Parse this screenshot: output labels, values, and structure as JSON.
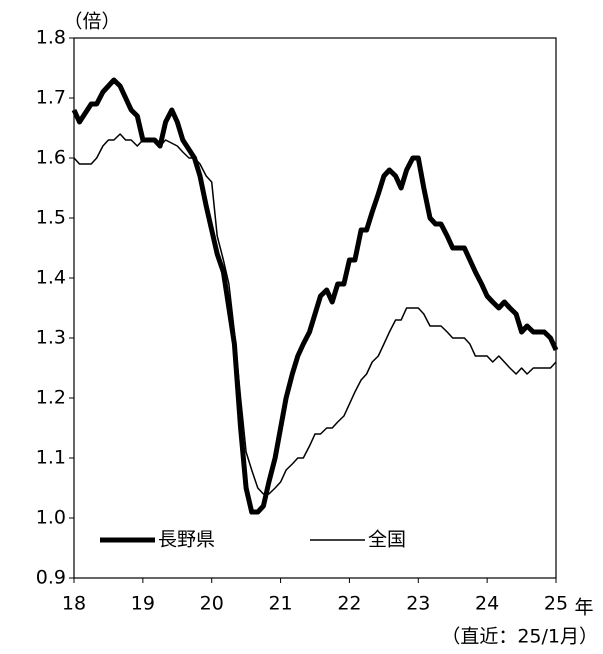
{
  "chart_data": {
    "type": "line",
    "y_unit": "（倍）",
    "x_unit": "年",
    "note": "（直近：25/1月）",
    "xlim": [
      18,
      25
    ],
    "xticks": [
      18,
      19,
      20,
      21,
      22,
      23,
      24,
      25
    ],
    "ylim": [
      0.9,
      1.8
    ],
    "yticks": [
      0.9,
      {
        "value": 1,
        "label": "1.0"
      },
      1.1,
      1.2,
      1.3,
      1.4,
      1.5,
      1.6,
      1.7,
      1.8
    ],
    "grid": false,
    "legend": "lower left",
    "series": [
      {
        "name": "長野県",
        "color": "#000000",
        "width": 5,
        "x": [
          18.0,
          18.08,
          18.25,
          18.33,
          18.42,
          18.58,
          18.67,
          18.83,
          18.92,
          19.0,
          19.17,
          19.25,
          19.33,
          19.42,
          19.5,
          19.58,
          19.75,
          19.83,
          19.92,
          20.0,
          20.08,
          20.17,
          20.25,
          20.33,
          20.42,
          20.5,
          20.58,
          20.67,
          20.75,
          20.83,
          20.92,
          21.0,
          21.08,
          21.17,
          21.25,
          21.33,
          21.42,
          21.5,
          21.58,
          21.67,
          21.75,
          21.83,
          21.92,
          22.0,
          22.08,
          22.17,
          22.25,
          22.33,
          22.42,
          22.5,
          22.58,
          22.67,
          22.75,
          22.83,
          22.92,
          23.0,
          23.08,
          23.17,
          23.25,
          23.33,
          23.42,
          23.5,
          23.58,
          23.67,
          23.75,
          23.83,
          23.92,
          24.0,
          24.08,
          24.17,
          24.25,
          24.33,
          24.42,
          24.5,
          24.58,
          24.67,
          24.83,
          24.92,
          25.0
        ],
        "values": [
          1.68,
          1.66,
          1.69,
          1.69,
          1.71,
          1.73,
          1.72,
          1.68,
          1.67,
          1.63,
          1.63,
          1.62,
          1.66,
          1.68,
          1.66,
          1.63,
          1.6,
          1.57,
          1.52,
          1.48,
          1.44,
          1.41,
          1.35,
          1.29,
          1.15,
          1.05,
          1.01,
          1.01,
          1.02,
          1.06,
          1.1,
          1.15,
          1.2,
          1.24,
          1.27,
          1.29,
          1.31,
          1.34,
          1.37,
          1.38,
          1.36,
          1.39,
          1.39,
          1.43,
          1.43,
          1.48,
          1.48,
          1.51,
          1.54,
          1.57,
          1.58,
          1.57,
          1.55,
          1.58,
          1.6,
          1.6,
          1.55,
          1.5,
          1.49,
          1.49,
          1.47,
          1.45,
          1.45,
          1.45,
          1.43,
          1.41,
          1.39,
          1.37,
          1.36,
          1.35,
          1.36,
          1.35,
          1.34,
          1.31,
          1.32,
          1.31,
          1.31,
          1.3,
          1.28
        ]
      },
      {
        "name": "全国",
        "color": "#000000",
        "width": 1.5,
        "x": [
          18.0,
          18.08,
          18.25,
          18.33,
          18.42,
          18.5,
          18.58,
          18.67,
          18.75,
          18.83,
          18.92,
          19.0,
          19.17,
          19.25,
          19.33,
          19.5,
          19.58,
          19.67,
          19.75,
          19.83,
          19.92,
          20.0,
          20.08,
          20.17,
          20.25,
          20.33,
          20.42,
          20.5,
          20.58,
          20.67,
          20.75,
          20.83,
          20.92,
          21.0,
          21.08,
          21.17,
          21.25,
          21.33,
          21.42,
          21.5,
          21.58,
          21.67,
          21.75,
          21.83,
          21.92,
          22.0,
          22.08,
          22.17,
          22.25,
          22.33,
          22.42,
          22.5,
          22.58,
          22.67,
          22.75,
          22.83,
          23.0,
          23.08,
          23.17,
          23.33,
          23.42,
          23.5,
          23.67,
          23.75,
          23.83,
          24.0,
          24.08,
          24.17,
          24.25,
          24.33,
          24.42,
          24.5,
          24.58,
          24.67,
          24.83,
          24.92,
          25.0
        ],
        "values": [
          1.6,
          1.59,
          1.59,
          1.6,
          1.62,
          1.63,
          1.63,
          1.64,
          1.63,
          1.63,
          1.62,
          1.63,
          1.63,
          1.62,
          1.63,
          1.62,
          1.61,
          1.6,
          1.6,
          1.59,
          1.57,
          1.56,
          1.47,
          1.43,
          1.39,
          1.31,
          1.2,
          1.11,
          1.08,
          1.05,
          1.04,
          1.04,
          1.05,
          1.06,
          1.08,
          1.09,
          1.1,
          1.1,
          1.12,
          1.14,
          1.14,
          1.15,
          1.15,
          1.16,
          1.17,
          1.19,
          1.21,
          1.23,
          1.24,
          1.26,
          1.27,
          1.29,
          1.31,
          1.33,
          1.33,
          1.35,
          1.35,
          1.34,
          1.32,
          1.32,
          1.31,
          1.3,
          1.3,
          1.29,
          1.27,
          1.27,
          1.26,
          1.27,
          1.26,
          1.25,
          1.24,
          1.25,
          1.24,
          1.25,
          1.25,
          1.25,
          1.26
        ]
      }
    ]
  }
}
